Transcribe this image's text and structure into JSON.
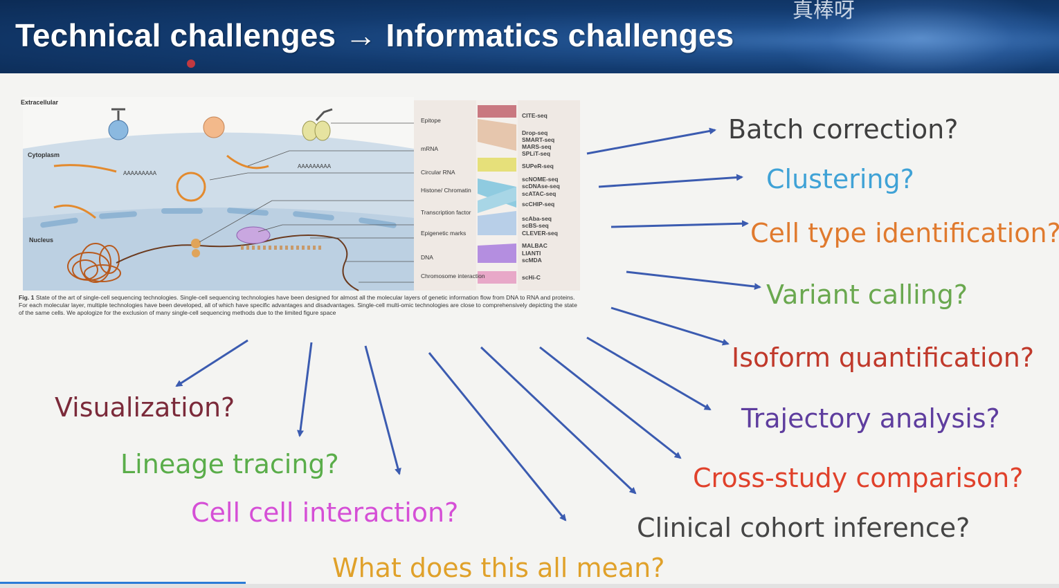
{
  "header": {
    "title": "Technical challenges → Informatics challenges",
    "watermark": "真棒呀"
  },
  "figure": {
    "regions": {
      "extracellular": "Extracellular",
      "cytoplasm": "Cytoplasm",
      "nucleus": "Nucleus"
    },
    "polya_1": "AAAAAAAAA",
    "polya_2": "AAAAAAAAA",
    "layers": [
      "Epitope",
      "mRNA",
      "Circular RNA",
      "Histone/ Chromatin",
      "Transcription factor",
      "Epigenetic marks",
      "DNA",
      "Chromosome interaction"
    ],
    "techs": {
      "t1": "CITE-seq",
      "t2": "Drop-seq",
      "t3": "SMART-seq",
      "t4": "MARS-seq",
      "t5": "SPLiT-seq",
      "t6": "SUPeR-seq",
      "t7": "scNOME-seq",
      "t8": "scDNAse-seq",
      "t9": "scATAC-seq",
      "t10": "scCHIP-seq",
      "t11": "scAba-seq",
      "t12": "scBS-seq",
      "t13": "CLEVER-seq",
      "t14": "MALBAC",
      "t15": "LIANTI",
      "t16": "scMDA",
      "t17": "scHi-C"
    },
    "caption_label": "Fig. 1",
    "caption_text": "State of the art of single-cell sequencing technologies. Single-cell sequencing technologies have been designed for almost all the molecular layers of genetic information flow from DNA to RNA and proteins. For each molecular layer, multiple technologies have been developed, all of which have specific advantages and disadvantages. Single-cell multi-omic technologies are close to comprehensively depicting the state of the same cells. We apologize for the exclusion of many single-cell sequencing methods due to the limited figure space"
  },
  "challenges": {
    "batch": {
      "text": "Batch correction?",
      "color": "#3f3f3f"
    },
    "clustering": {
      "text": "Clustering?",
      "color": "#3fa2d6"
    },
    "celltype": {
      "text": "Cell type identification?",
      "color": "#e07a2e"
    },
    "variant": {
      "text": "Variant calling?",
      "color": "#6aa84f"
    },
    "isoform": {
      "text": "Isoform quantification?",
      "color": "#c0392b"
    },
    "trajectory": {
      "text": "Trajectory analysis?",
      "color": "#5e3d9e"
    },
    "crossstudy": {
      "text": "Cross-study comparison?",
      "color": "#e0412b"
    },
    "clinical": {
      "text": "Clinical cohort inference?",
      "color": "#454545"
    },
    "meaning": {
      "text": "What does this all mean?",
      "color": "#e0a12a"
    },
    "cellcell": {
      "text": "Cell cell interaction?",
      "color": "#d54fd6"
    },
    "lineage": {
      "text": "Lineage tracing?",
      "color": "#5aad4a"
    },
    "visualization": {
      "text": "Visualization?",
      "color": "#7b2a3a"
    }
  },
  "arrow_color": "#3b5bb0"
}
